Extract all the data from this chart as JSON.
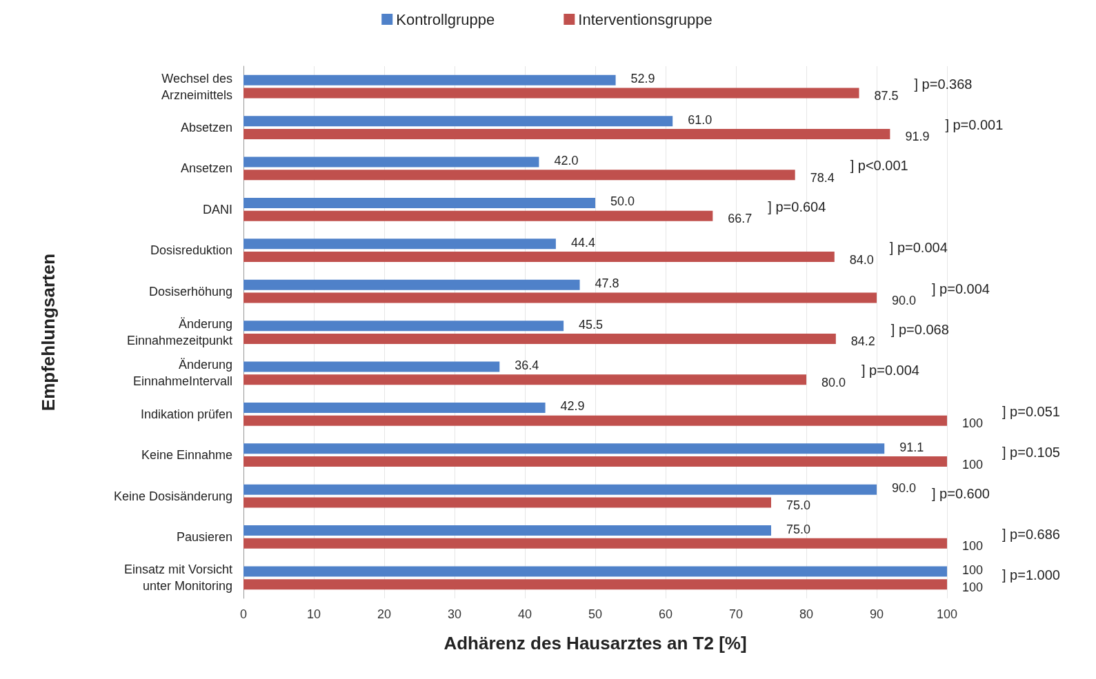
{
  "chart_data": {
    "type": "bar",
    "orientation": "horizontal",
    "xlabel": "Adhärenz des Hausarztes an T2 [%]",
    "ylabel": "Empfehlungsarten",
    "categories": [
      "Wechsel des\nArzneimittels",
      "Absetzen",
      "Ansetzen",
      "DANI",
      "Dosisreduktion",
      "Dosiserhöhung",
      "Änderung\nEinnahmezeitpunkt",
      "Änderung\nEinnahmeIntervall",
      "Indikation prüfen",
      "Keine Einnahme",
      "Keine Dosisänderung",
      "Pausieren",
      "Einsatz mit Vorsicht\nunter Monitoring"
    ],
    "series": [
      {
        "name": "Kontrollgruppe",
        "color": "#4f81c9",
        "values": [
          52.9,
          61.0,
          42.0,
          50.0,
          44.4,
          47.8,
          45.5,
          36.4,
          42.9,
          91.1,
          90.0,
          75.0,
          100
        ],
        "value_labels": [
          "52.9",
          "61.0",
          "42.0",
          "50.0",
          "44.4",
          "47.8",
          "45.5",
          "36.4",
          "42.9",
          "91.1",
          "90.0",
          "75.0",
          "100"
        ]
      },
      {
        "name": "Interventionsgruppe",
        "color": "#c0504d",
        "values": [
          87.5,
          91.9,
          78.4,
          66.7,
          84.0,
          90.0,
          84.2,
          80.0,
          100,
          100,
          75.0,
          100,
          100
        ],
        "value_labels": [
          "87.5",
          "91.9",
          "78.4",
          "66.7",
          "84.0",
          "90.0",
          "84.2",
          "80.0",
          "100",
          "100",
          "75.0",
          "100",
          "100"
        ]
      }
    ],
    "xlim": [
      0,
      100
    ],
    "xticks": [
      0,
      10,
      20,
      30,
      40,
      50,
      60,
      70,
      80,
      90,
      100
    ],
    "grid": "x",
    "legend": "top",
    "annotations": [
      "] p=0.368",
      "] p=0.001",
      "] p<0.001",
      "] p=0.604",
      "] p=0.004",
      "] p=0.004",
      "] p=0.068",
      "] p=0.004",
      "] p=0.051",
      "] p=0.105",
      "] p=0.600",
      "] p=0.686",
      "] p=1.000"
    ]
  }
}
